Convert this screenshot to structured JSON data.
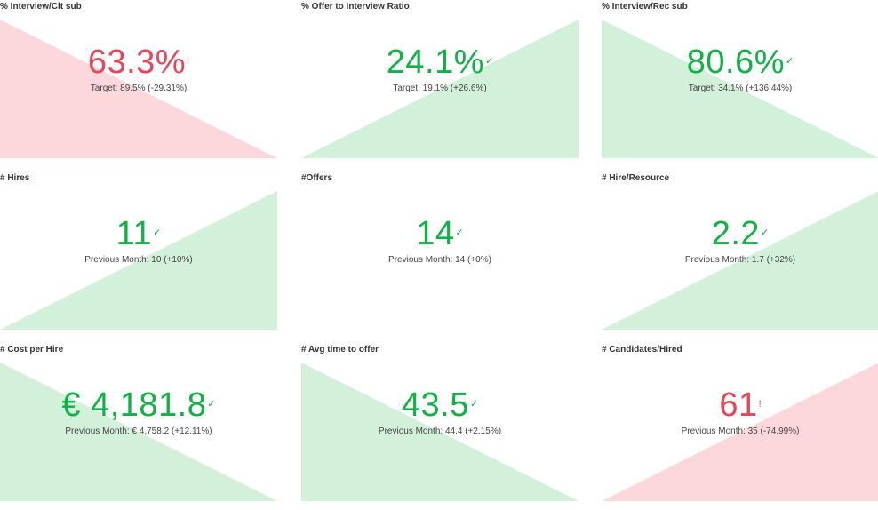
{
  "colors": {
    "good_text": "#10b246",
    "bad_text": "#e8445a",
    "good_fill": "#d2f0da",
    "bad_fill": "#fcd7dc"
  },
  "cards": [
    {
      "title": "% Interview/Clt sub",
      "value": "63.3%",
      "status": "bad",
      "indicator": "!",
      "subtitle": "Target: 89.5% (-29.31%)",
      "triangle": "down"
    },
    {
      "title": "% Offer to Interview Ratio",
      "value": "24.1%",
      "status": "good",
      "indicator": "✓",
      "subtitle": "Target: 19.1% (+26.6%)",
      "triangle": "up"
    },
    {
      "title": "% Interview/Rec sub",
      "value": "80.6%",
      "status": "good",
      "indicator": "✓",
      "subtitle": "Target: 34.1% (+136.44%)",
      "triangle": "down"
    },
    {
      "title": "# Hires",
      "value": "11",
      "status": "good",
      "indicator": "✓",
      "subtitle": "Previous Month: 10 (+10%)",
      "triangle": "up"
    },
    {
      "title": "#Offers",
      "value": "14",
      "status": "good",
      "indicator": "✓",
      "subtitle": "Previous Month: 14 (+0%)",
      "triangle": "none"
    },
    {
      "title": "# Hire/Resource",
      "value": "2.2",
      "status": "good",
      "indicator": "✓",
      "subtitle": "Previous Month: 1.7 (+32%)",
      "triangle": "up"
    },
    {
      "title": "# Cost per Hire",
      "value": "€ 4,181.8",
      "status": "good",
      "indicator": "✓",
      "subtitle": "Previous Month: € 4,758.2 (+12.11%)",
      "triangle": "down"
    },
    {
      "title": "# Avg time to offer",
      "value": "43.5",
      "status": "good",
      "indicator": "✓",
      "subtitle": "Previous Month: 44.4 (+2.15%)",
      "triangle": "down"
    },
    {
      "title": "# Candidates/Hired",
      "value": "61",
      "status": "bad",
      "indicator": "!",
      "subtitle": "Previous Month: 35 (-74.99%)",
      "triangle": "up"
    }
  ]
}
